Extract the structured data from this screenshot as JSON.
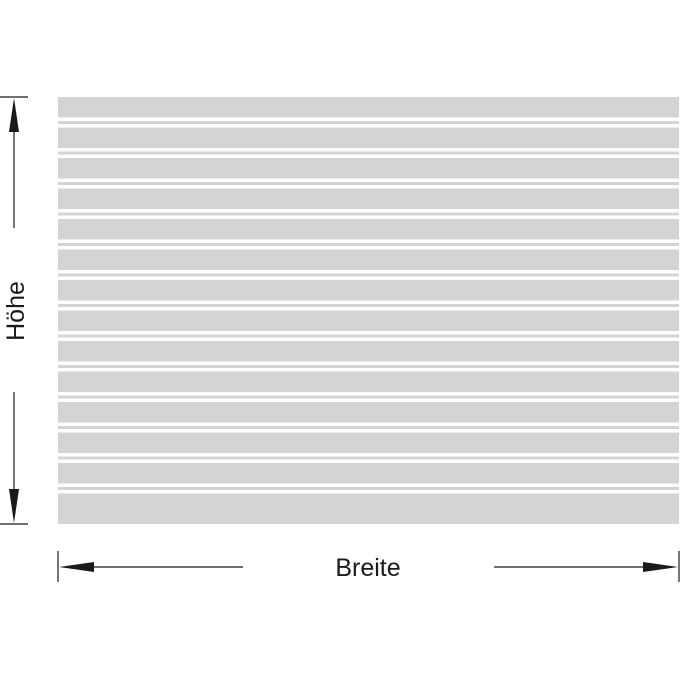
{
  "diagram": {
    "width_label": "Breite",
    "height_label": "Höhe",
    "panel": {
      "stripe_count": 14,
      "fill_color": "#d4d4d4",
      "line_color": "#ffffff",
      "background_color": "#ffffff"
    },
    "dimension_color": "#1a1a1a"
  }
}
